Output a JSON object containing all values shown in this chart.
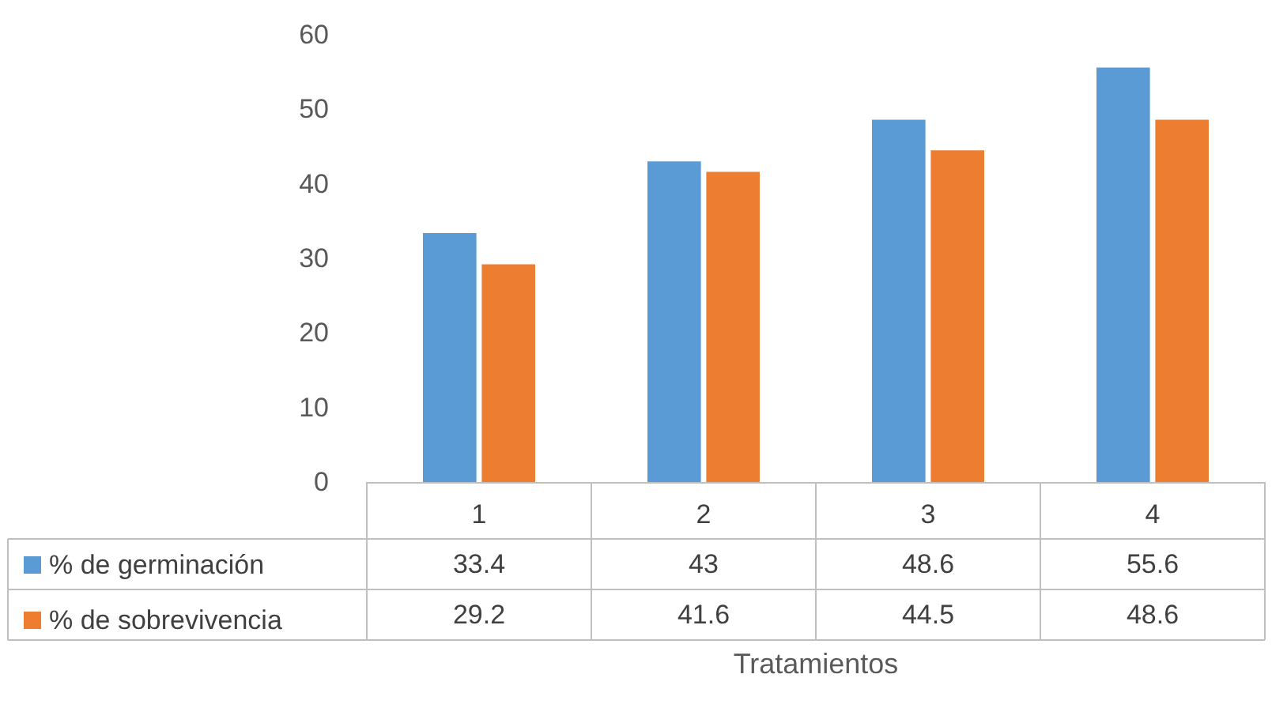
{
  "chart_data": {
    "type": "bar",
    "xlabel": "Tratamientos",
    "categories": [
      "1",
      "2",
      "3",
      "4"
    ],
    "series": [
      {
        "name": "% de germinación",
        "color": "#5b9bd5",
        "values": [
          33.4,
          43,
          48.6,
          55.6
        ]
      },
      {
        "name": "% de sobrevivencia",
        "color": "#ed7d31",
        "values": [
          29.2,
          41.6,
          44.5,
          48.6
        ]
      }
    ],
    "ylim": [
      0,
      60
    ],
    "yticks": [
      0,
      10,
      20,
      30,
      40,
      50,
      60
    ],
    "grid": false,
    "legend": "bottom left",
    "data_labels": true
  }
}
